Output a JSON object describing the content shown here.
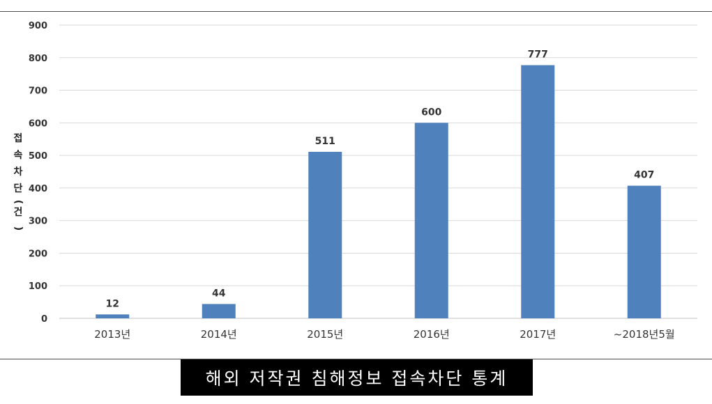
{
  "chart_data": {
    "type": "bar",
    "categories": [
      "2013년",
      "2014년",
      "2015년",
      "2016년",
      "2017년",
      "~2018년5월"
    ],
    "values": [
      12,
      44,
      511,
      600,
      777,
      407
    ],
    "data_labels": [
      "12",
      "44",
      "511",
      "600",
      "777",
      "407"
    ],
    "yticks": [
      "0",
      "100",
      "200",
      "300",
      "400",
      "500",
      "600",
      "700",
      "800",
      "900"
    ],
    "ylim": [
      0,
      900
    ],
    "ylabel": "접속차단(건)",
    "grid": true,
    "bar_color": "#4f81bd"
  },
  "caption": "해외 저작권 침해정보 접속차단 통계"
}
